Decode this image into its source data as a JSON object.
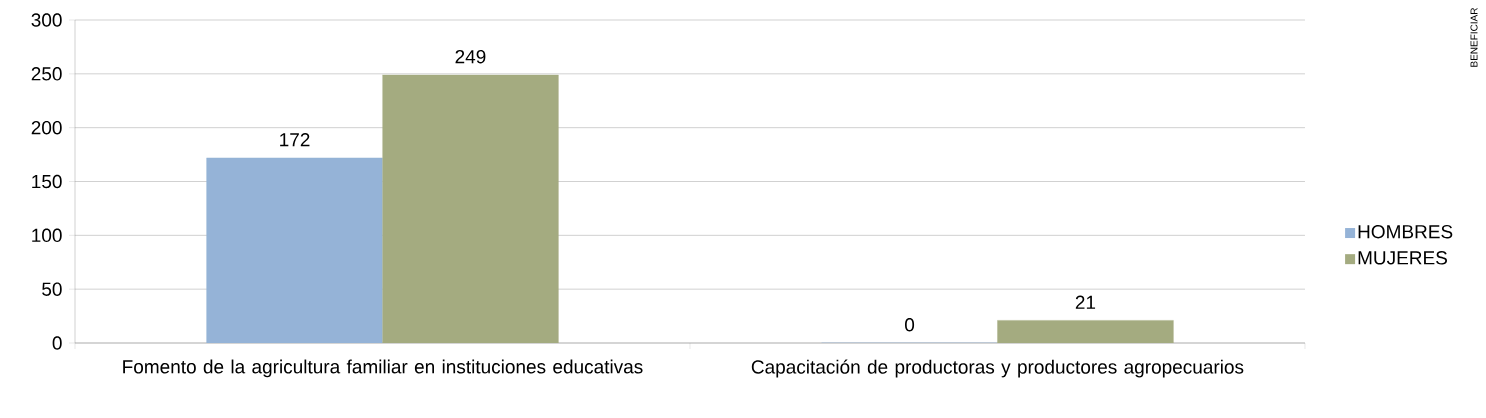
{
  "chart_data": {
    "type": "bar",
    "categories": [
      "Fomento de la agricultura familiar en instituciones educativas",
      "Capacitación de productoras y productores agropecuarios"
    ],
    "series": [
      {
        "name": "HOMBRES",
        "color": "#95b3d7",
        "values": [
          172,
          0
        ]
      },
      {
        "name": "MUJERES",
        "color": "#a4ab80",
        "values": [
          249,
          21
        ]
      }
    ],
    "ylim": [
      0,
      300
    ],
    "yticks": [
      0,
      50,
      100,
      150,
      200,
      250,
      300
    ],
    "grid": "y",
    "legend": "right",
    "data_labels": true,
    "annotations": [
      "BENEFICIAR"
    ]
  }
}
